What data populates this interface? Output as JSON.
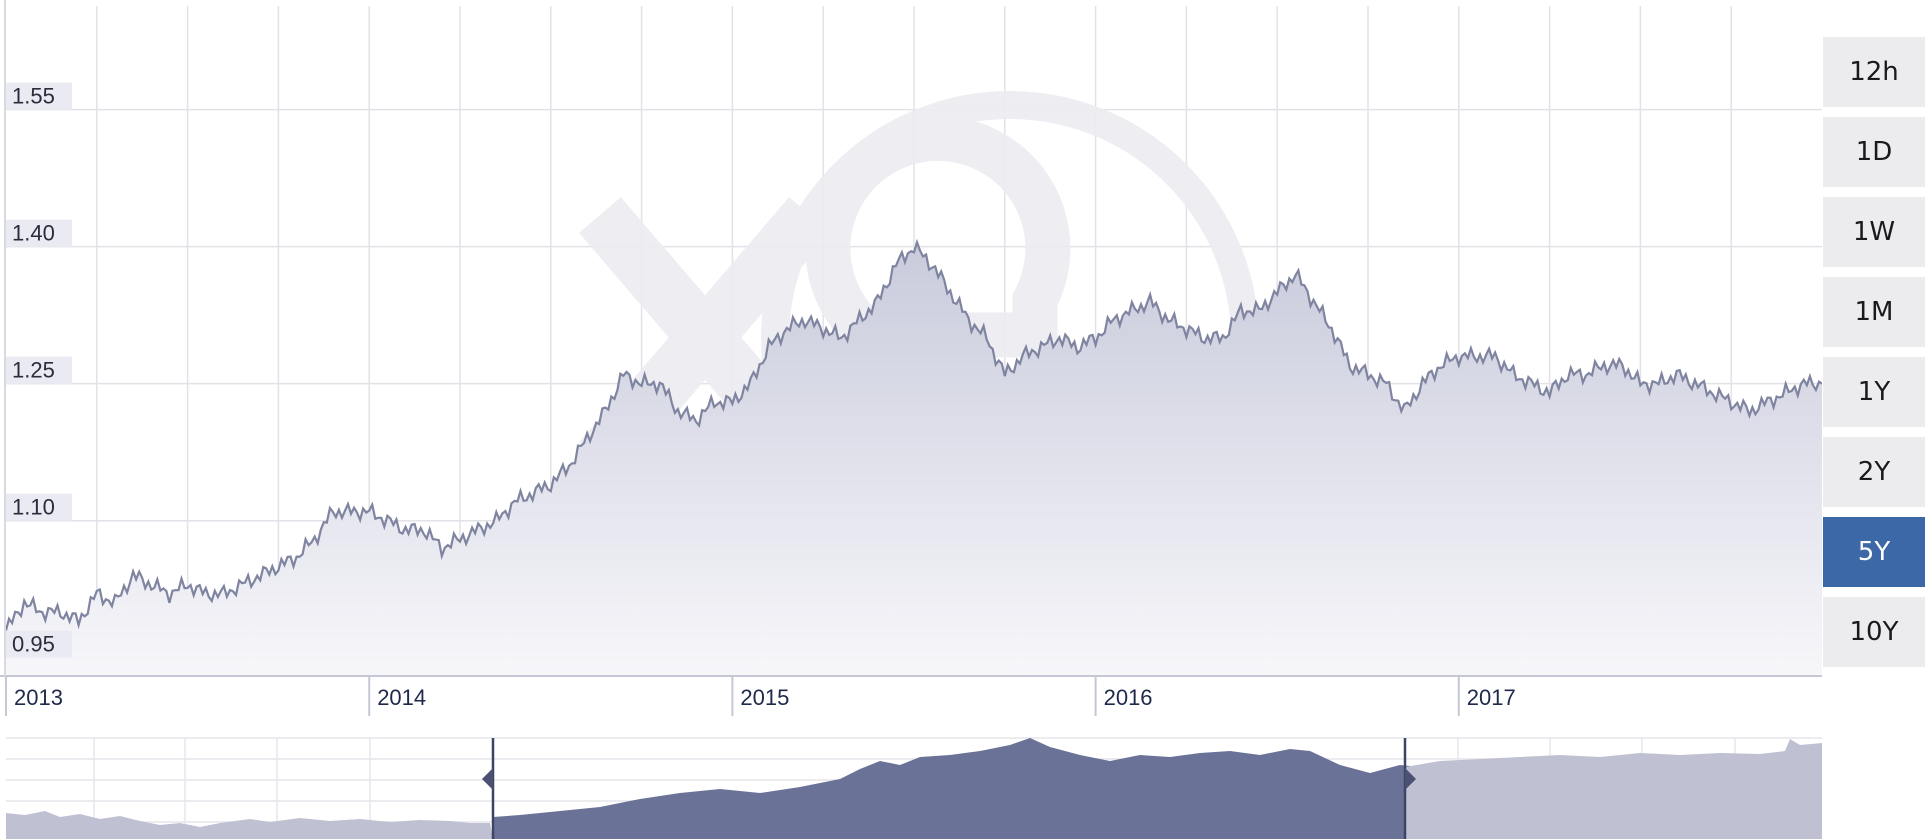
{
  "colors": {
    "line": "#7f84a0",
    "area_top": "#c9cbdc",
    "area_bottom": "#f7f7fa",
    "grid": "#e2e2e8",
    "label_bg": "#eaebf2",
    "nav_selected": "#6b7298",
    "nav_unselected": "#bfc1d2",
    "button_bg": "#ececef",
    "button_active": "#3d68a8",
    "watermark": "#ececf1"
  },
  "watermark": {
    "icon": "xe-logo-watermark"
  },
  "range_buttons": [
    {
      "label": "12h",
      "active": false
    },
    {
      "label": "1D",
      "active": false
    },
    {
      "label": "1W",
      "active": false
    },
    {
      "label": "1M",
      "active": false
    },
    {
      "label": "1Y",
      "active": false
    },
    {
      "label": "2Y",
      "active": false
    },
    {
      "label": "5Y",
      "active": true
    },
    {
      "label": "10Y",
      "active": false
    }
  ],
  "chart_data": {
    "type": "area",
    "title": "",
    "xlabel": "",
    "ylabel": "",
    "y_ticks": [
      "1.55",
      "1.40",
      "1.25",
      "1.10",
      "0.95"
    ],
    "y_tick_values": [
      1.55,
      1.4,
      1.25,
      1.1,
      0.95
    ],
    "x_tick_labels": [
      "2013",
      "2014",
      "2015",
      "2016",
      "2017"
    ],
    "x_tick_values": [
      2013.0,
      2014.0,
      2015.0,
      2016.0,
      2017.0
    ],
    "xlim": [
      2013.0,
      2018.0
    ],
    "ylim": [
      0.93,
      1.67
    ],
    "grid": true,
    "series": [
      {
        "x": [
          2013.0,
          2013.05,
          2013.1,
          2013.15,
          2013.2,
          2013.25,
          2013.3,
          2013.35,
          2013.4,
          2013.45,
          2013.5,
          2013.55,
          2013.6,
          2013.65,
          2013.7,
          2013.75,
          2013.8,
          2013.85,
          2013.9,
          2013.95,
          2014.0,
          2014.05,
          2014.1,
          2014.15,
          2014.2,
          2014.25,
          2014.3,
          2014.35,
          2014.4,
          2014.45,
          2014.5,
          2014.55,
          2014.6,
          2014.65,
          2014.7,
          2014.75,
          2014.8,
          2014.85,
          2014.9,
          2014.95,
          2015.0,
          2015.05,
          2015.1,
          2015.15,
          2015.2,
          2015.25,
          2015.3,
          2015.35,
          2015.4,
          2015.45,
          2015.5,
          2015.55,
          2015.6,
          2015.65,
          2015.7,
          2015.75,
          2015.8,
          2015.85,
          2015.9,
          2015.95,
          2016.0,
          2016.05,
          2016.1,
          2016.15,
          2016.2,
          2016.25,
          2016.3,
          2016.35,
          2016.4,
          2016.45,
          2016.5,
          2016.55,
          2016.6,
          2016.65,
          2016.7,
          2016.75,
          2016.8,
          2016.85,
          2016.9,
          2016.95,
          2017.0,
          2017.05,
          2017.1,
          2017.15,
          2017.2,
          2017.25,
          2017.3,
          2017.35,
          2017.4,
          2017.45,
          2017.5,
          2017.55,
          2017.6,
          2017.65,
          2017.7,
          2017.75,
          2017.8,
          2017.85,
          2017.9,
          2017.95,
          2018.0
        ],
        "y": [
          0.98,
          1.01,
          1.0,
          1.0,
          0.99,
          1.02,
          1.01,
          1.04,
          1.03,
          1.02,
          1.03,
          1.02,
          1.02,
          1.03,
          1.04,
          1.05,
          1.06,
          1.08,
          1.11,
          1.11,
          1.11,
          1.1,
          1.09,
          1.09,
          1.07,
          1.08,
          1.09,
          1.1,
          1.12,
          1.13,
          1.14,
          1.16,
          1.19,
          1.22,
          1.26,
          1.25,
          1.25,
          1.22,
          1.21,
          1.23,
          1.23,
          1.25,
          1.29,
          1.31,
          1.32,
          1.31,
          1.3,
          1.32,
          1.34,
          1.38,
          1.4,
          1.38,
          1.35,
          1.32,
          1.3,
          1.26,
          1.28,
          1.29,
          1.3,
          1.29,
          1.3,
          1.32,
          1.33,
          1.34,
          1.32,
          1.31,
          1.3,
          1.3,
          1.33,
          1.33,
          1.35,
          1.37,
          1.34,
          1.31,
          1.27,
          1.26,
          1.25,
          1.22,
          1.25,
          1.27,
          1.28,
          1.28,
          1.28,
          1.26,
          1.25,
          1.24,
          1.26,
          1.26,
          1.27,
          1.27,
          1.25,
          1.25,
          1.26,
          1.25,
          1.24,
          1.23,
          1.22,
          1.23,
          1.24,
          1.25,
          1.25
        ]
      }
    ]
  }
}
